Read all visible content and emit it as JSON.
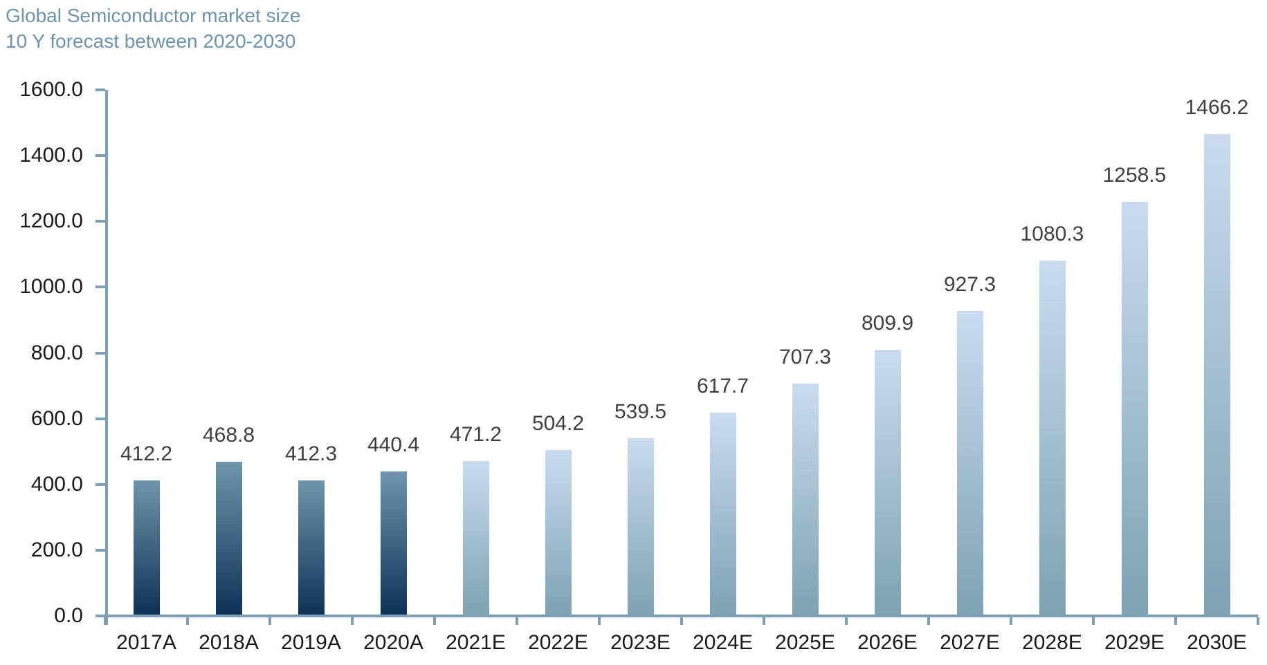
{
  "title": {
    "line1": "Global Semiconductor market size",
    "line2": "10 Y forecast between 2020-2030"
  },
  "chart_data": {
    "type": "bar",
    "title": "Global Semiconductor market size 10 Y forecast between 2020-2030",
    "categories": [
      "2017A",
      "2018A",
      "2019A",
      "2020A",
      "2021E",
      "2022E",
      "2023E",
      "2024E",
      "2025E",
      "2026E",
      "2027E",
      "2028E",
      "2029E",
      "2030E"
    ],
    "values": [
      412.2,
      468.8,
      412.3,
      440.4,
      471.2,
      504.2,
      539.5,
      617.7,
      707.3,
      809.9,
      927.3,
      1080.3,
      1258.5,
      1466.2
    ],
    "bar_types": [
      "actual",
      "actual",
      "actual",
      "actual",
      "estimate",
      "estimate",
      "estimate",
      "estimate",
      "estimate",
      "estimate",
      "estimate",
      "estimate",
      "estimate",
      "estimate"
    ],
    "data_labels": [
      "412.2",
      "468.8",
      "412.3",
      "440.4",
      "471.2",
      "504.2",
      "539.5",
      "617.7",
      "707.3",
      "809.9",
      "927.3",
      "1080.3",
      "1258.5",
      "1466.2"
    ],
    "xlabel": "",
    "ylabel": "",
    "ylim": [
      0,
      1600
    ],
    "ytick_step": 200,
    "ytick_labels": [
      "0.0",
      "200.0",
      "400.0",
      "600.0",
      "800.0",
      "1000.0",
      "1200.0",
      "1400.0",
      "1600.0"
    ],
    "grid": false,
    "legend_position": "none"
  },
  "colors": {
    "background": "#FFFFFF",
    "title_text": "#6D94AC",
    "axis_line": "#7DA0B6",
    "axis_text": "#1A1A1A",
    "data_label_text": "#3F3F3F",
    "bar_actual_top": "#6F96AC",
    "bar_actual_bottom": "#0D3156",
    "bar_estimate_top": "#CADBF0",
    "bar_estimate_bottom": "#7CA2B4"
  }
}
